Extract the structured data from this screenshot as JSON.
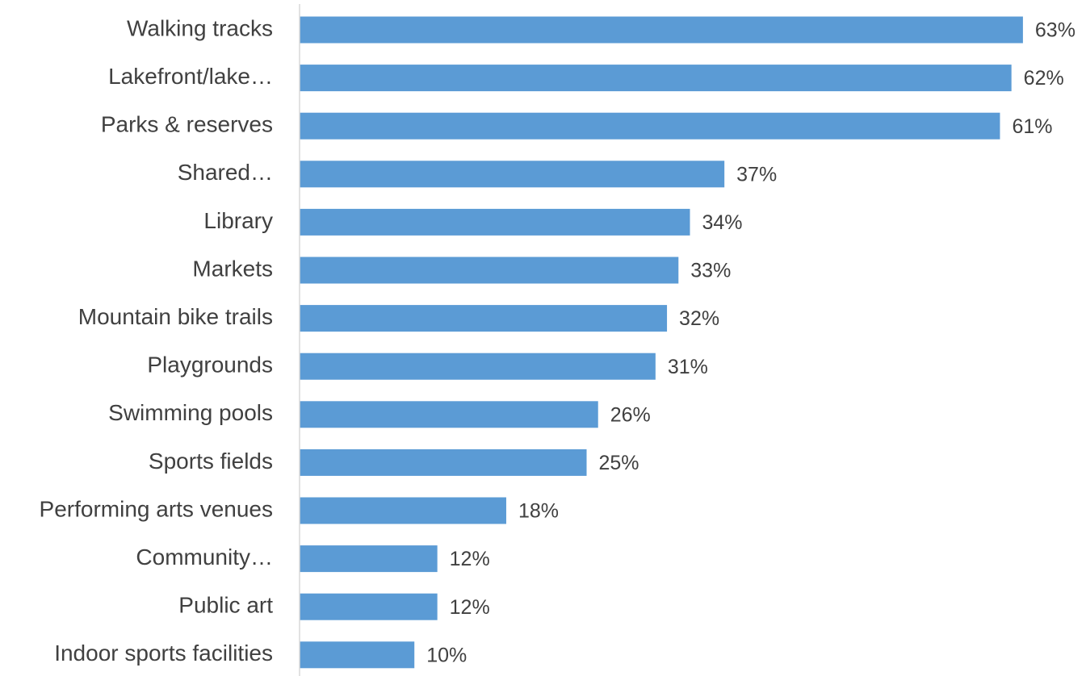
{
  "chart_data": {
    "type": "bar",
    "orientation": "horizontal",
    "categories": [
      "Walking tracks",
      "Lakefront/lake…",
      "Parks & reserves",
      "Shared…",
      "Library",
      "Markets",
      "Mountain bike trails",
      "Playgrounds",
      "Swimming pools",
      "Sports fields",
      "Performing arts venues",
      "Community…",
      "Public art",
      "Indoor sports facilities"
    ],
    "values": [
      63,
      62,
      61,
      37,
      34,
      33,
      32,
      31,
      26,
      25,
      18,
      12,
      12,
      10
    ],
    "value_labels": [
      "63%",
      "62%",
      "61%",
      "37%",
      "34%",
      "33%",
      "32%",
      "31%",
      "26%",
      "25%",
      "18%",
      "12%",
      "12%",
      "10%"
    ],
    "color": "#5b9bd5",
    "xlim": [
      0,
      68
    ]
  }
}
